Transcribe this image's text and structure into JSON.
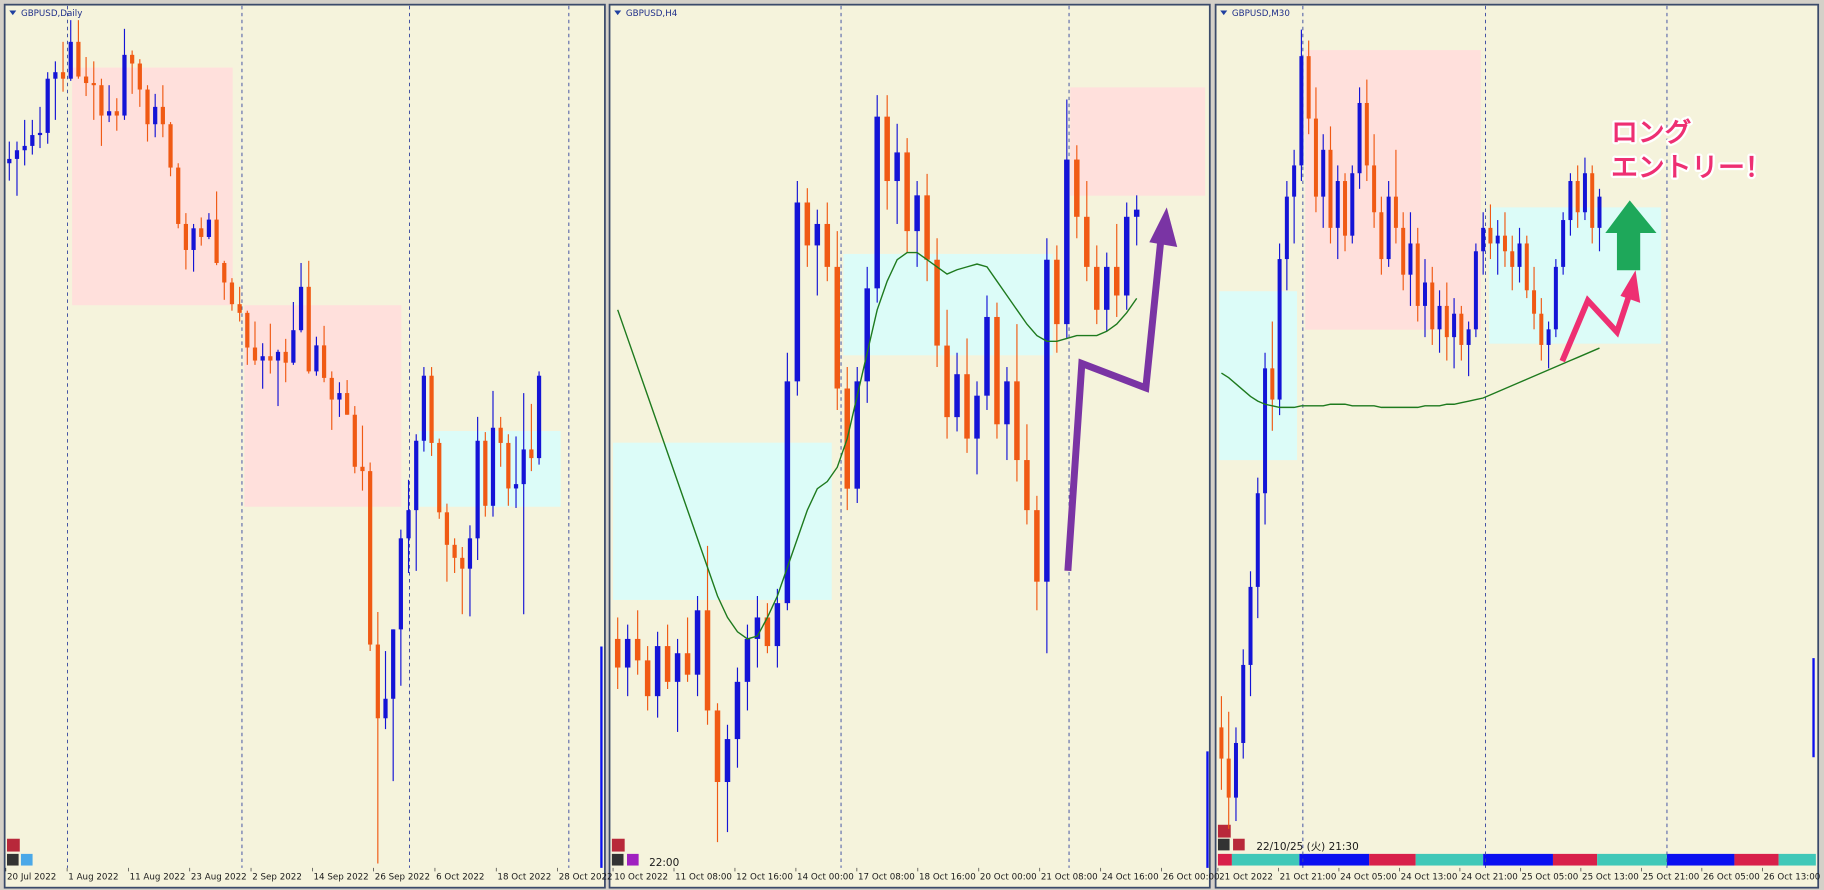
{
  "chart_data": [
    {
      "type": "candlestick",
      "title": "GBPUSD,Daily",
      "ylim": [
        1.034,
        1.232
      ],
      "bull_color": "#1414d6",
      "bear_color": "#f05a14",
      "xtick_labels": [
        "20 Jul 2022",
        "1 Aug 2022",
        "11 Aug 2022",
        "23 Aug 2022",
        "2 Sep 2022",
        "14 Sep 2022",
        "26 Sep 2022",
        "6 Oct 2022",
        "18 Oct 2022",
        "28 Oct 2022"
      ],
      "annotations": [],
      "ohlc": [
        [
          1.1965,
          1.2015,
          1.1925,
          1.1975
        ],
        [
          1.1975,
          1.2015,
          1.189,
          1.1995
        ],
        [
          1.1995,
          1.2065,
          1.196,
          1.2005
        ],
        [
          1.2005,
          1.2065,
          1.1985,
          1.203
        ],
        [
          1.203,
          1.2095,
          1.2,
          1.2035
        ],
        [
          1.2035,
          1.2175,
          1.201,
          1.216
        ],
        [
          1.216,
          1.22,
          1.2065,
          1.2175
        ],
        [
          1.2175,
          1.2245,
          1.213,
          1.216
        ],
        [
          1.216,
          1.2295,
          1.2155,
          1.2245
        ],
        [
          1.2245,
          1.2295,
          1.216,
          1.2165
        ],
        [
          1.2165,
          1.221,
          1.212,
          1.215
        ],
        [
          1.215,
          1.22,
          1.2065,
          1.2145
        ],
        [
          1.2145,
          1.216,
          1.2005,
          1.2075
        ],
        [
          1.2075,
          1.2145,
          1.206,
          1.2085
        ],
        [
          1.2085,
          1.2115,
          1.204,
          1.2075
        ],
        [
          1.2075,
          1.2275,
          1.2065,
          1.2215
        ],
        [
          1.2215,
          1.2225,
          1.2125,
          1.2195
        ],
        [
          1.2195,
          1.2205,
          1.2095,
          1.2135
        ],
        [
          1.2135,
          1.2145,
          1.2015,
          1.2055
        ],
        [
          1.2055,
          1.2125,
          1.2025,
          1.2095
        ],
        [
          1.2095,
          1.2145,
          1.2025,
          1.2055
        ],
        [
          1.2055,
          1.206,
          1.1935,
          1.1955
        ],
        [
          1.1955,
          1.1965,
          1.1815,
          1.1825
        ],
        [
          1.1825,
          1.185,
          1.172,
          1.1765
        ],
        [
          1.1765,
          1.1825,
          1.1715,
          1.1815
        ],
        [
          1.1815,
          1.184,
          1.1775,
          1.1795
        ],
        [
          1.1795,
          1.185,
          1.179,
          1.1835
        ],
        [
          1.1835,
          1.19,
          1.173,
          1.1735
        ],
        [
          1.1735,
          1.174,
          1.165,
          1.169
        ],
        [
          1.169,
          1.17,
          1.1625,
          1.164
        ],
        [
          1.164,
          1.168,
          1.16,
          1.162
        ],
        [
          1.162,
          1.1625,
          1.15,
          1.154
        ],
        [
          1.154,
          1.16,
          1.15,
          1.151
        ],
        [
          1.151,
          1.155,
          1.1445,
          1.152
        ],
        [
          1.152,
          1.1595,
          1.148,
          1.151
        ],
        [
          1.151,
          1.1535,
          1.1405,
          1.153
        ],
        [
          1.153,
          1.156,
          1.146,
          1.1505
        ],
        [
          1.1505,
          1.1645,
          1.15,
          1.158
        ],
        [
          1.158,
          1.1735,
          1.1575,
          1.168
        ],
        [
          1.168,
          1.174,
          1.148,
          1.1485
        ],
        [
          1.1485,
          1.1565,
          1.1475,
          1.1545
        ],
        [
          1.1545,
          1.159,
          1.146,
          1.147
        ],
        [
          1.147,
          1.1485,
          1.135,
          1.142
        ],
        [
          1.142,
          1.146,
          1.138,
          1.1435
        ],
        [
          1.1435,
          1.1465,
          1.1385,
          1.1385
        ],
        [
          1.1385,
          1.1405,
          1.125,
          1.1265
        ],
        [
          1.1265,
          1.136,
          1.121,
          1.1255
        ],
        [
          1.1255,
          1.1275,
          1.084,
          1.0855
        ],
        [
          1.0855,
          1.093,
          1.035,
          1.0685
        ],
        [
          1.0685,
          1.084,
          1.066,
          1.073
        ],
        [
          1.073,
          1.089,
          1.054,
          1.089
        ],
        [
          1.089,
          1.112,
          1.076,
          1.11
        ],
        [
          1.11,
          1.1235,
          1.102,
          1.1165
        ],
        [
          1.1165,
          1.134,
          1.1025,
          1.1325
        ],
        [
          1.1325,
          1.1495,
          1.13,
          1.1475
        ],
        [
          1.1475,
          1.1495,
          1.129,
          1.132
        ],
        [
          1.132,
          1.133,
          1.1145,
          1.116
        ],
        [
          1.116,
          1.118,
          1.1,
          1.1085
        ],
        [
          1.1085,
          1.11,
          1.102,
          1.1055
        ],
        [
          1.1055,
          1.108,
          1.0925,
          1.103
        ],
        [
          1.103,
          1.113,
          1.092,
          1.11
        ],
        [
          1.11,
          1.138,
          1.105,
          1.1325
        ],
        [
          1.1325,
          1.1345,
          1.115,
          1.1175
        ],
        [
          1.1175,
          1.144,
          1.115,
          1.1355
        ],
        [
          1.1355,
          1.138,
          1.1265,
          1.132
        ],
        [
          1.132,
          1.134,
          1.1175,
          1.1215
        ],
        [
          1.1215,
          1.1335,
          1.117,
          1.1225
        ],
        [
          1.1225,
          1.1435,
          1.0925,
          1.1305
        ],
        [
          1.1305,
          1.141,
          1.1255,
          1.1285
        ],
        [
          1.1285,
          1.1485,
          1.127,
          1.1475
        ]
      ]
    },
    {
      "type": "candlestick",
      "title": "GBPUSD,H4",
      "ylim": [
        1.09,
        1.15
      ],
      "bull_color": "#1414d6",
      "bear_color": "#f05a14",
      "xtick_labels": [
        "10 Oct 2022",
        "11 Oct 08:00",
        "12 Oct 16:00",
        "14 Oct 00:00",
        "17 Oct 08:00",
        "18 Oct 16:00",
        "20 Oct 00:00",
        "21 Oct 08:00",
        "24 Oct 16:00",
        "26 Oct 00:00"
      ],
      "annotations": [
        "22:00"
      ],
      "ohlc": [
        [
          1.106,
          1.1075,
          1.1025,
          1.104
        ],
        [
          1.104,
          1.107,
          1.102,
          1.106
        ],
        [
          1.106,
          1.108,
          1.1035,
          1.1045
        ],
        [
          1.1045,
          1.1055,
          1.101,
          1.102
        ],
        [
          1.102,
          1.1065,
          1.1005,
          1.1055
        ],
        [
          1.1055,
          1.107,
          1.1025,
          1.103
        ],
        [
          1.103,
          1.106,
          1.0995,
          1.105
        ],
        [
          1.105,
          1.1075,
          1.103,
          1.1035
        ],
        [
          1.1035,
          1.109,
          1.102,
          1.108
        ],
        [
          1.108,
          1.1125,
          1.1,
          1.101
        ],
        [
          1.101,
          1.1015,
          1.0918,
          1.096
        ],
        [
          1.096,
          1.1,
          1.0925,
          1.099
        ],
        [
          1.099,
          1.104,
          1.097,
          1.103
        ],
        [
          1.103,
          1.107,
          1.101,
          1.106
        ],
        [
          1.106,
          1.109,
          1.104,
          1.1075
        ],
        [
          1.1075,
          1.1085,
          1.105,
          1.1055
        ],
        [
          1.1055,
          1.1095,
          1.104,
          1.1085
        ],
        [
          1.1085,
          1.126,
          1.108,
          1.124
        ],
        [
          1.124,
          1.138,
          1.123,
          1.1365
        ],
        [
          1.1365,
          1.1375,
          1.132,
          1.1335
        ],
        [
          1.1335,
          1.136,
          1.13,
          1.135
        ],
        [
          1.135,
          1.1365,
          1.131,
          1.132
        ],
        [
          1.132,
          1.1345,
          1.122,
          1.1235
        ],
        [
          1.1235,
          1.125,
          1.115,
          1.1165
        ],
        [
          1.1165,
          1.125,
          1.1155,
          1.124
        ],
        [
          1.124,
          1.132,
          1.1225,
          1.1305
        ],
        [
          1.1305,
          1.144,
          1.1295,
          1.1425
        ],
        [
          1.1425,
          1.144,
          1.136,
          1.138
        ],
        [
          1.138,
          1.142,
          1.135,
          1.14
        ],
        [
          1.14,
          1.141,
          1.133,
          1.1345
        ],
        [
          1.1345,
          1.138,
          1.132,
          1.137
        ],
        [
          1.137,
          1.1385,
          1.131,
          1.1325
        ],
        [
          1.1325,
          1.134,
          1.125,
          1.1265
        ],
        [
          1.1265,
          1.129,
          1.12,
          1.1215
        ],
        [
          1.1215,
          1.126,
          1.1205,
          1.1245
        ],
        [
          1.1245,
          1.127,
          1.119,
          1.12
        ],
        [
          1.12,
          1.124,
          1.1175,
          1.123
        ],
        [
          1.123,
          1.13,
          1.122,
          1.1285
        ],
        [
          1.1285,
          1.1295,
          1.12,
          1.121
        ],
        [
          1.121,
          1.125,
          1.1185,
          1.124
        ],
        [
          1.124,
          1.128,
          1.117,
          1.1185
        ],
        [
          1.1185,
          1.121,
          1.114,
          1.115
        ],
        [
          1.115,
          1.116,
          1.108,
          1.11
        ],
        [
          1.11,
          1.134,
          1.105,
          1.1325
        ],
        [
          1.1325,
          1.1335,
          1.126,
          1.128
        ],
        [
          1.128,
          1.1437,
          1.127,
          1.1395
        ],
        [
          1.1395,
          1.1405,
          1.134,
          1.1355
        ],
        [
          1.1355,
          1.138,
          1.131,
          1.132
        ],
        [
          1.132,
          1.1335,
          1.128,
          1.129
        ],
        [
          1.129,
          1.133,
          1.1275,
          1.132
        ],
        [
          1.132,
          1.135,
          1.1285,
          1.13
        ],
        [
          1.13,
          1.1365,
          1.129,
          1.1355
        ],
        [
          1.1355,
          1.137,
          1.1335,
          1.136
        ]
      ],
      "ma": {
        "color": "#1e7a1e",
        "values": [
          1.129,
          1.127,
          1.125,
          1.123,
          1.121,
          1.119,
          1.117,
          1.115,
          1.113,
          1.111,
          1.109,
          1.1075,
          1.1065,
          1.106,
          1.1062,
          1.1075,
          1.109,
          1.111,
          1.113,
          1.115,
          1.1165,
          1.117,
          1.118,
          1.12,
          1.123,
          1.126,
          1.129,
          1.131,
          1.1325,
          1.133,
          1.133,
          1.1325,
          1.132,
          1.1315,
          1.1318,
          1.132,
          1.1322,
          1.132,
          1.131,
          1.13,
          1.129,
          1.128,
          1.1272,
          1.1268,
          1.1268,
          1.127,
          1.1272,
          1.1272,
          1.1272,
          1.1275,
          1.128,
          1.1288,
          1.1298
        ]
      }
    },
    {
      "type": "candlestick",
      "title": "GBPUSD,M30",
      "ylim": [
        1.09,
        1.145
      ],
      "bull_color": "#1414d6",
      "bear_color": "#f05a14",
      "xtick_labels": [
        "21 Oct 2022",
        "21 Oct 21:00",
        "24 Oct 05:00",
        "24 Oct 13:00",
        "24 Oct 21:00",
        "25 Oct 05:00",
        "25 Oct 13:00",
        "25 Oct 21:00",
        "26 Oct 05:00",
        "26 Oct 13:00"
      ],
      "annotations": [
        "22/10/25 (火) 21:30",
        "ロング",
        "エントリー！"
      ],
      "ohlc": [
        [
          1.099,
          1.101,
          1.095,
          1.097
        ],
        [
          1.097,
          1.1,
          1.0925,
          1.0945
        ],
        [
          1.0945,
          1.099,
          1.093,
          1.098
        ],
        [
          1.098,
          1.104,
          1.097,
          1.103
        ],
        [
          1.103,
          1.109,
          1.101,
          1.108
        ],
        [
          1.108,
          1.115,
          1.106,
          1.114
        ],
        [
          1.114,
          1.123,
          1.112,
          1.122
        ],
        [
          1.122,
          1.125,
          1.118,
          1.12
        ],
        [
          1.12,
          1.13,
          1.119,
          1.129
        ],
        [
          1.129,
          1.134,
          1.127,
          1.133
        ],
        [
          1.133,
          1.136,
          1.13,
          1.135
        ],
        [
          1.135,
          1.1437,
          1.134,
          1.142
        ],
        [
          1.142,
          1.143,
          1.137,
          1.138
        ],
        [
          1.138,
          1.14,
          1.132,
          1.133
        ],
        [
          1.133,
          1.137,
          1.131,
          1.136
        ],
        [
          1.136,
          1.1375,
          1.13,
          1.131
        ],
        [
          1.131,
          1.135,
          1.129,
          1.134
        ],
        [
          1.134,
          1.1345,
          1.1295,
          1.1305
        ],
        [
          1.1305,
          1.135,
          1.13,
          1.1345
        ],
        [
          1.1345,
          1.14,
          1.1335,
          1.139
        ],
        [
          1.139,
          1.1405,
          1.134,
          1.135
        ],
        [
          1.135,
          1.137,
          1.131,
          1.132
        ],
        [
          1.132,
          1.133,
          1.128,
          1.129
        ],
        [
          1.129,
          1.134,
          1.1285,
          1.133
        ],
        [
          1.133,
          1.136,
          1.13,
          1.131
        ],
        [
          1.131,
          1.132,
          1.127,
          1.128
        ],
        [
          1.128,
          1.132,
          1.126,
          1.13
        ],
        [
          1.13,
          1.131,
          1.125,
          1.126
        ],
        [
          1.126,
          1.129,
          1.124,
          1.1275
        ],
        [
          1.1275,
          1.1285,
          1.1235,
          1.1245
        ],
        [
          1.1245,
          1.127,
          1.123,
          1.126
        ],
        [
          1.126,
          1.1275,
          1.1225,
          1.124
        ],
        [
          1.124,
          1.1265,
          1.122,
          1.1255
        ],
        [
          1.1255,
          1.126,
          1.1225,
          1.1235
        ],
        [
          1.1235,
          1.125,
          1.1215,
          1.1245
        ],
        [
          1.1245,
          1.13,
          1.124,
          1.1295
        ],
        [
          1.1295,
          1.132,
          1.128,
          1.131
        ],
        [
          1.131,
          1.1325,
          1.129,
          1.13
        ],
        [
          1.13,
          1.1315,
          1.128,
          1.1305
        ],
        [
          1.1305,
          1.132,
          1.1285,
          1.1295
        ],
        [
          1.1295,
          1.1305,
          1.127,
          1.1285
        ],
        [
          1.1285,
          1.131,
          1.1275,
          1.13
        ],
        [
          1.13,
          1.1305,
          1.1265,
          1.127
        ],
        [
          1.127,
          1.1285,
          1.1245,
          1.1255
        ],
        [
          1.1255,
          1.1265,
          1.1225,
          1.1235
        ],
        [
          1.1235,
          1.125,
          1.122,
          1.1245
        ],
        [
          1.1245,
          1.129,
          1.124,
          1.1285
        ],
        [
          1.1285,
          1.132,
          1.128,
          1.1315
        ],
        [
          1.1315,
          1.1345,
          1.1305,
          1.134
        ],
        [
          1.134,
          1.135,
          1.131,
          1.132
        ],
        [
          1.132,
          1.1355,
          1.1315,
          1.1345
        ],
        [
          1.1345,
          1.135,
          1.13,
          1.131
        ],
        [
          1.131,
          1.1335,
          1.1295,
          1.133
        ]
      ],
      "ma": {
        "color": "#1e7a1e",
        "values": [
          1.1217,
          1.1214,
          1.121,
          1.1206,
          1.1202,
          1.1199,
          1.1197,
          1.1196,
          1.1195,
          1.1195,
          1.1195,
          1.1196,
          1.1196,
          1.1196,
          1.1196,
          1.1197,
          1.1197,
          1.1197,
          1.1196,
          1.1196,
          1.1196,
          1.1196,
          1.1195,
          1.1195,
          1.1195,
          1.1195,
          1.1195,
          1.1195,
          1.1196,
          1.1196,
          1.1196,
          1.1197,
          1.1197,
          1.1198,
          1.1199,
          1.12,
          1.1201,
          1.1203,
          1.1205,
          1.1207,
          1.1209,
          1.1211,
          1.1213,
          1.1215,
          1.1217,
          1.1219,
          1.1221,
          1.1223,
          1.1225,
          1.1227,
          1.1229,
          1.1231,
          1.1233
        ]
      }
    }
  ]
}
